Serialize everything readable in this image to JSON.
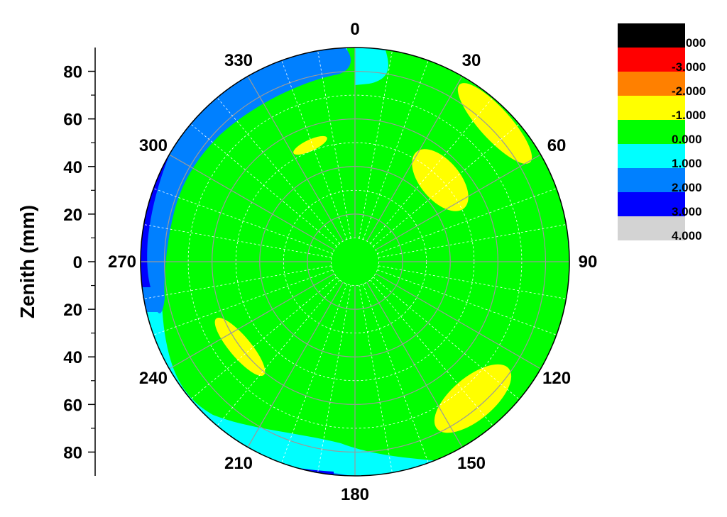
{
  "chart_data": {
    "type": "polar-contour",
    "ylabel": "Zenith (mm)",
    "radial_range": [
      0,
      90
    ],
    "radial_ticks": [
      "80",
      "60",
      "40",
      "20",
      "0",
      "20",
      "40",
      "60",
      "80"
    ],
    "radial_tick_values": [
      80,
      60,
      40,
      20,
      0,
      20,
      40,
      60,
      80
    ],
    "angle_ticks": [
      "0",
      "30",
      "60",
      "90",
      "120",
      "150",
      "180",
      "210",
      "240",
      "270",
      "300",
      "330"
    ],
    "angle_tick_values": [
      0,
      30,
      60,
      90,
      120,
      150,
      180,
      210,
      240,
      270,
      300,
      330
    ],
    "grid": true,
    "legend_position": "top-right",
    "legend": {
      "levels": [
        "-4.000",
        "-3.000",
        "-2.000",
        "-1.000",
        "0.000",
        "1.000",
        "2.000",
        "3.000",
        "4.000"
      ],
      "colors": [
        "#000000",
        "#ff0000",
        "#ff8000",
        "#ffff00",
        "#00ff00",
        "#00ffff",
        "#0080ff",
        "#0000ff",
        "#d3d3d3"
      ]
    },
    "base_level_color": "#00ff00",
    "regions": [
      {
        "level": "2.000 to 3.000",
        "color": "#0080ff",
        "location": "outer rim, 195-345 deg"
      },
      {
        "level": "3.000 to 4.000",
        "color": "#0000ff",
        "location": "outer rim, 240-300 deg and 180-200 deg"
      },
      {
        "level": "1.000 to 2.000",
        "color": "#00ffff",
        "location": "band along rim, 90-360 deg"
      },
      {
        "level": "-1.000 to 0.000",
        "color": "#ffff00",
        "location": "islands near 35, 50, 145, 235, 322 deg"
      }
    ]
  }
}
